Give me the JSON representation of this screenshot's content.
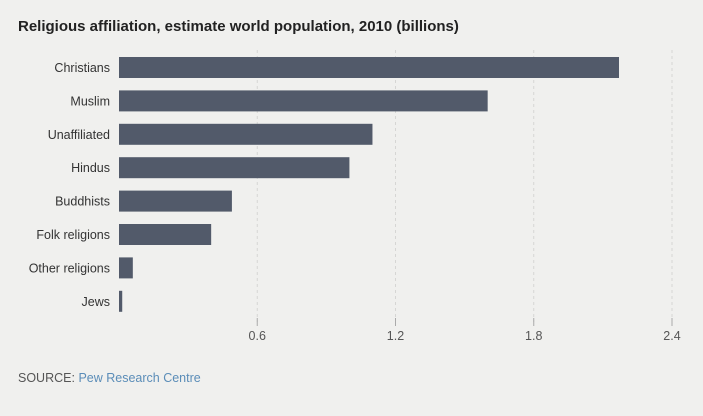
{
  "chart_data": {
    "type": "bar",
    "orientation": "horizontal",
    "title": "Religious affiliation, estimate world population, 2010 (billions)",
    "categories": [
      "Christians",
      "Muslim",
      "Unaffiliated",
      "Hindus",
      "Buddhists",
      "Folk religions",
      "Other religions",
      "Jews"
    ],
    "values": [
      2.17,
      1.6,
      1.1,
      1.0,
      0.49,
      0.4,
      0.06,
      0.014
    ],
    "xticks": [
      "0.6",
      "1.2",
      "1.8",
      "2.4"
    ],
    "xlim": [
      0,
      2.4
    ],
    "grid": true,
    "bar_color": "#525a6a"
  },
  "source": {
    "label": "SOURCE:",
    "link": "Pew Research Centre"
  }
}
